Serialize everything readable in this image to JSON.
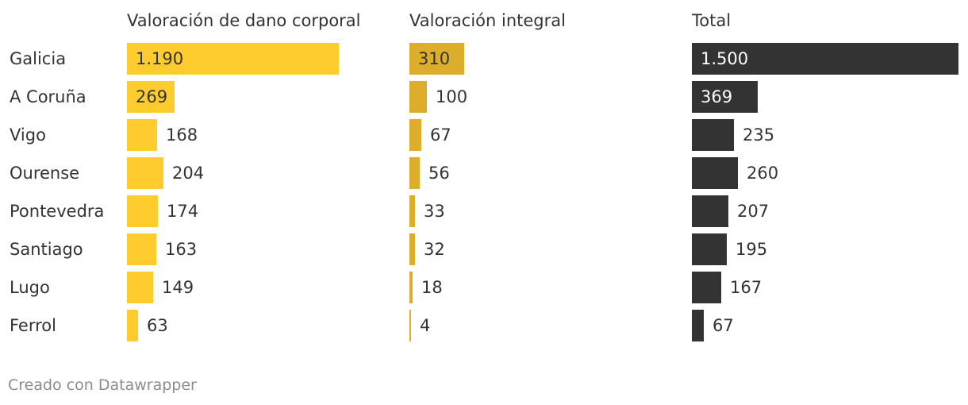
{
  "chart_data": {
    "type": "bar",
    "orientation": "horizontal",
    "categories": [
      "Galicia",
      "A Coruña",
      "Vigo",
      "Ourense",
      "Pontevedra",
      "Santiago",
      "Lugo",
      "Ferrol"
    ],
    "series": [
      {
        "name": "Valoración de dano corporal",
        "color": "#fecc2f",
        "values": [
          1190,
          269,
          168,
          204,
          174,
          163,
          149,
          63
        ],
        "labels": [
          "1.190",
          "269",
          "168",
          "204",
          "174",
          "163",
          "149",
          "63"
        ]
      },
      {
        "name": "Valoración integral",
        "color": "#ddae2c",
        "values": [
          310,
          100,
          67,
          56,
          33,
          32,
          18,
          4
        ],
        "labels": [
          "310",
          "100",
          "67",
          "56",
          "33",
          "32",
          "18",
          "4"
        ]
      },
      {
        "name": "Total",
        "color": "#333333",
        "values": [
          1500,
          369,
          235,
          260,
          207,
          195,
          167,
          67
        ],
        "labels": [
          "1.500",
          "369",
          "235",
          "260",
          "207",
          "195",
          "167",
          "67"
        ]
      }
    ],
    "grid": false,
    "legend": "none"
  },
  "footer": {
    "credit": "Creado con Datawrapper"
  }
}
